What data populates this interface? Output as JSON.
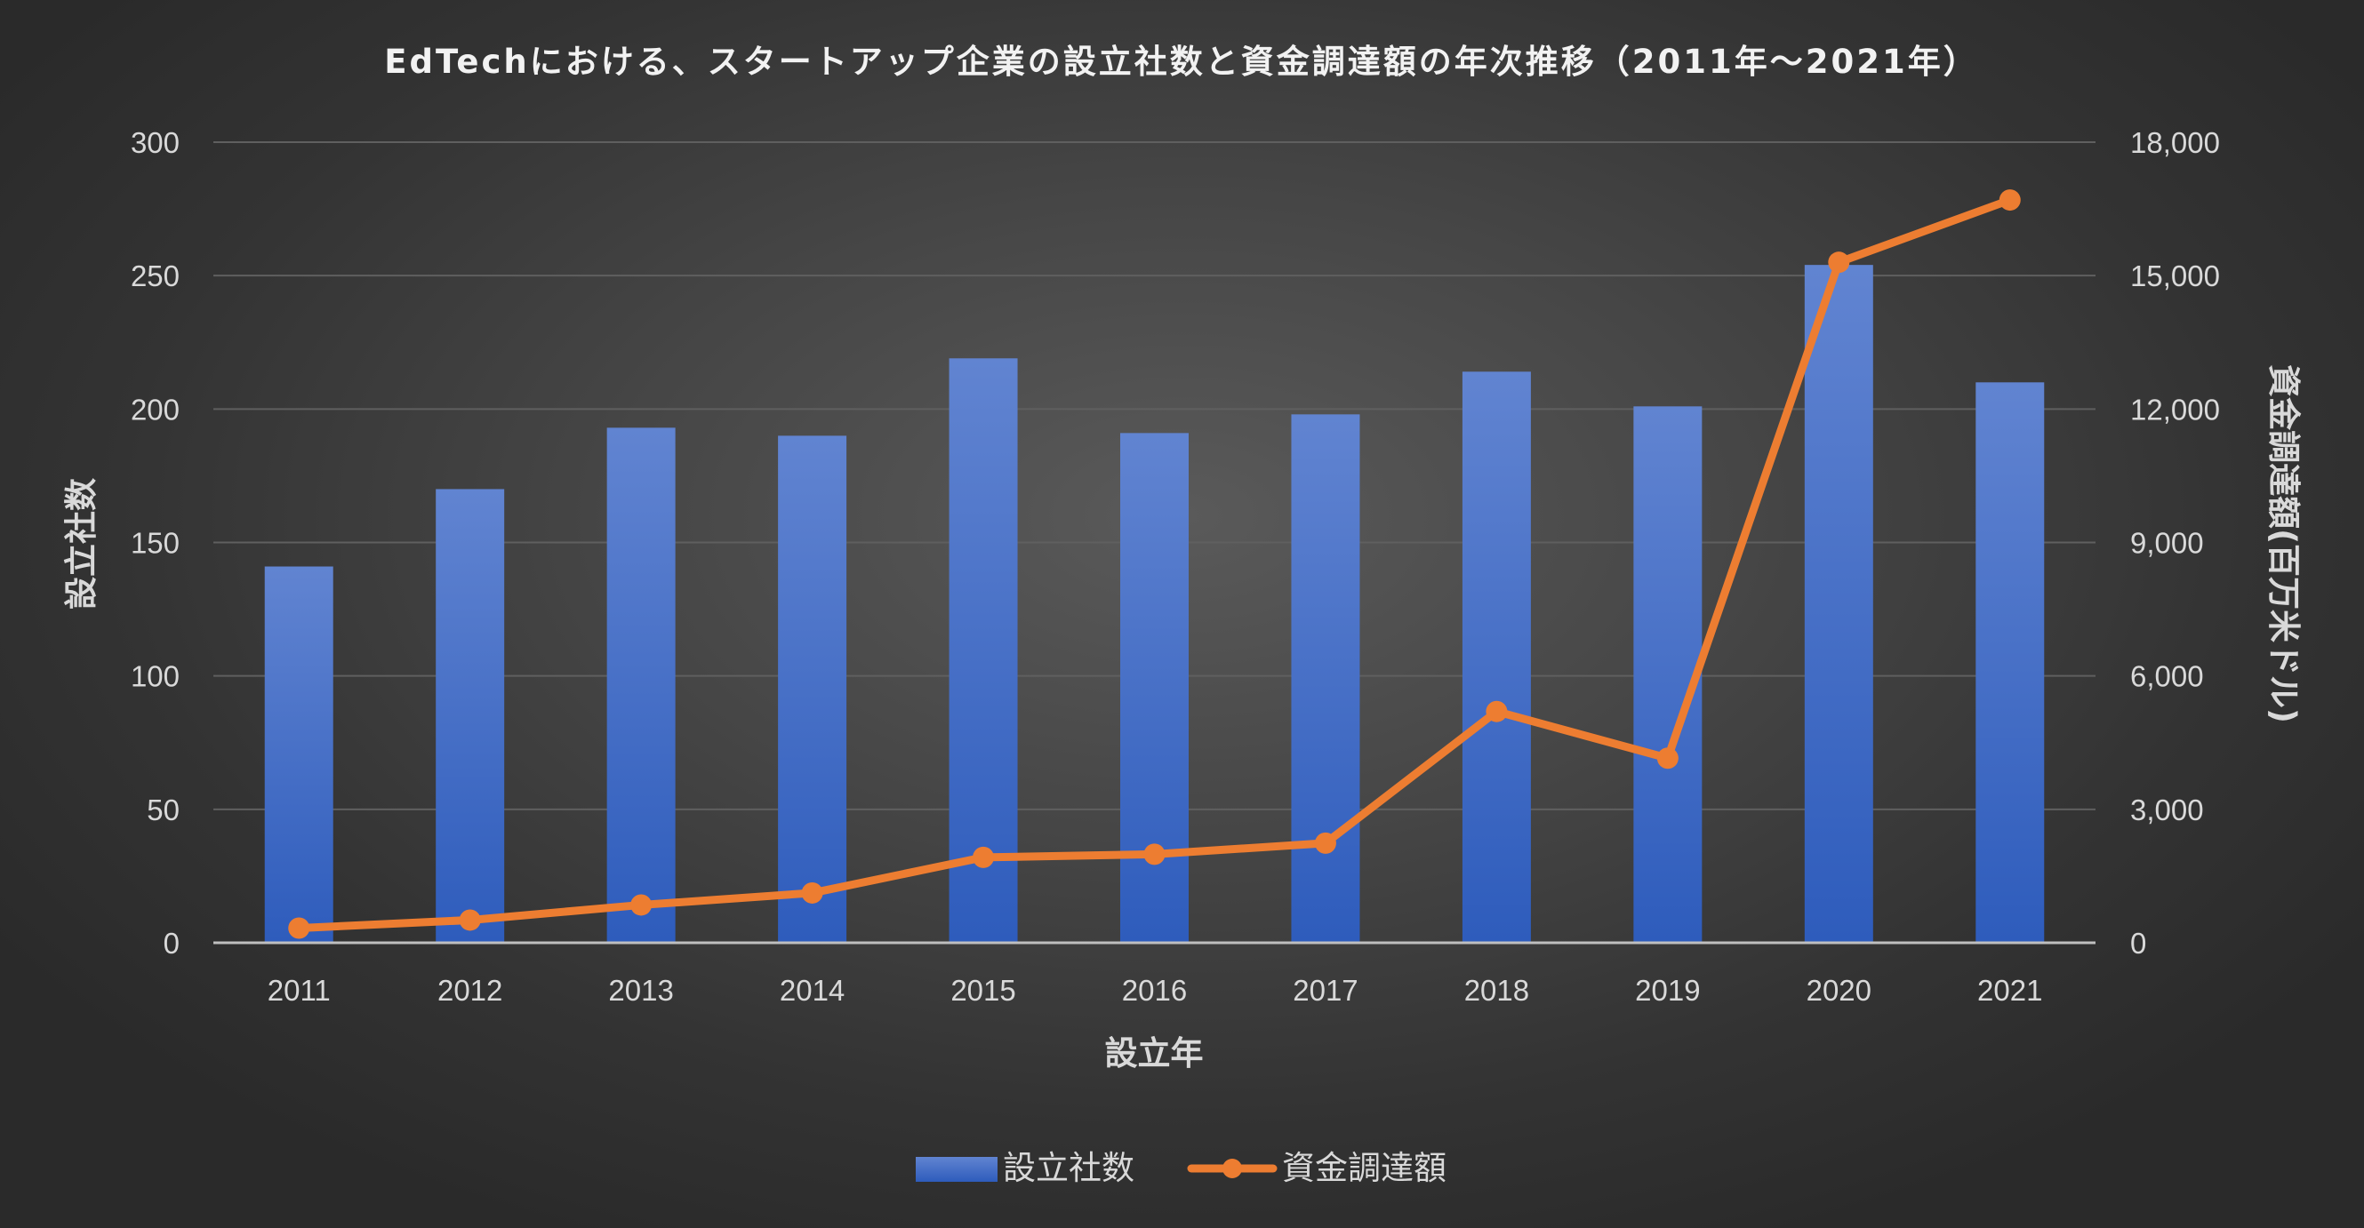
{
  "chart_data": {
    "type": "bar+line",
    "title": "EdTechにおける、スタートアップ企業の設立社数と資金調達額の年次推移（2011年～2021年）",
    "xlabel": "設立年",
    "ylabel_left": "設立社数",
    "ylabel_right": "資金調達額(百万米ドル)",
    "categories": [
      "2011",
      "2012",
      "2013",
      "2014",
      "2015",
      "2016",
      "2017",
      "2018",
      "2019",
      "2020",
      "2021"
    ],
    "ylim_left": [
      0,
      300
    ],
    "yticks_left": [
      "0",
      "50",
      "100",
      "150",
      "200",
      "250",
      "300"
    ],
    "ylim_right": [
      0,
      18000
    ],
    "yticks_right": [
      "0",
      "3,000",
      "6,000",
      "9,000",
      "12,000",
      "15,000",
      "18,000"
    ],
    "grid": true,
    "legend_position": "bottom",
    "series": [
      {
        "name": "設立社数",
        "type": "bar",
        "axis": "left",
        "color": "#4a74c9",
        "values": [
          141,
          170,
          193,
          190,
          219,
          191,
          198,
          214,
          201,
          254,
          210
        ]
      },
      {
        "name": "資金調達額",
        "type": "line",
        "axis": "right",
        "color": "#ed7d31",
        "values": [
          330,
          510,
          850,
          1120,
          1920,
          1990,
          2240,
          5200,
          4150,
          15300,
          16700
        ]
      }
    ]
  }
}
